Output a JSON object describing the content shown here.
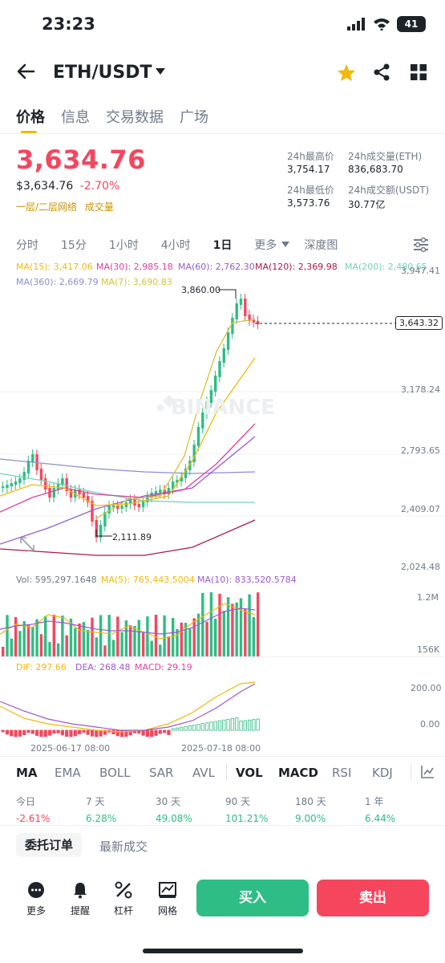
{
  "status": {
    "time": "23:23",
    "battery": "41"
  },
  "header": {
    "pair": "ETH/USDT"
  },
  "tabs": [
    "价格",
    "信息",
    "交易数据",
    "广场"
  ],
  "ticker": {
    "price": "3,634.76",
    "price_usd": "$3,634.76",
    "change": "-2.70%",
    "tag1": "一层/二层网络",
    "tag2": "成交量",
    "high_label": "24h最高价",
    "high": "3,754.17",
    "low_label": "24h最低价",
    "low": "3,573.76",
    "vol_eth_label": "24h成交量(ETH)",
    "vol_eth": "836,683.70",
    "vol_usdt_label": "24h成交额(USDT)",
    "vol_usdt": "30.77亿"
  },
  "timeframes": [
    "分时",
    "15分",
    "1小时",
    "4小时",
    "1日",
    "更多",
    "深度图"
  ],
  "ma": {
    "ma15": "MA(15): 3,417.06",
    "ma30": "MA(30): 2,985.18",
    "ma60": "MA(60): 2,762.30",
    "ma120": "MA(120): 2,369.98",
    "ma200": "MA(200): 2,480.65",
    "ma360": "MA(360): 2,669.79",
    "ma7": "MA(7): 3,690.83"
  },
  "price_axis": [
    "3,947.41",
    "3,178.24",
    "2,793.65",
    "2,409.07",
    "2,024.48"
  ],
  "marks": {
    "high": "3,860.00",
    "low": "2,111.89",
    "current": "3,643.32"
  },
  "watermark": "BINANCE",
  "volume": {
    "vol": "Vol: 595,297.1648",
    "ma5": "MA(5): 765,443.5004",
    "ma10": "MA(10): 833,520.5784",
    "axis_top": "1.2M",
    "axis_bottom": "156K"
  },
  "macd": {
    "dif": "DIF: 297.66",
    "dea": "DEA: 268.48",
    "macd": "MACD: 29.19",
    "axis_top": "200.00",
    "axis_bottom": "0.00"
  },
  "dates": [
    "2025-06-17 08:00",
    "2025-07-18 08:00"
  ],
  "indicators": [
    "MA",
    "EMA",
    "BOLL",
    "SAR",
    "AVL",
    "VOL",
    "MACD",
    "RSI",
    "KDJ"
  ],
  "performance": [
    {
      "label": "今日",
      "value": "-2.61%"
    },
    {
      "label": "7 天",
      "value": "6.28%"
    },
    {
      "label": "30 天",
      "value": "49.08%"
    },
    {
      "label": "90 天",
      "value": "101.21%"
    },
    {
      "label": "180 天",
      "value": "9.00%"
    },
    {
      "label": "1 年",
      "value": "6.44%"
    }
  ],
  "order_tabs": [
    "委托订单",
    "最新成交"
  ],
  "bottom_actions": [
    "更多",
    "提醒",
    "杠杆",
    "网格"
  ],
  "buttons": {
    "buy": "买入",
    "sell": "卖出"
  },
  "colors": {
    "up": "#2ebd85",
    "down": "#f6465d",
    "accent": "#f0b90b"
  }
}
